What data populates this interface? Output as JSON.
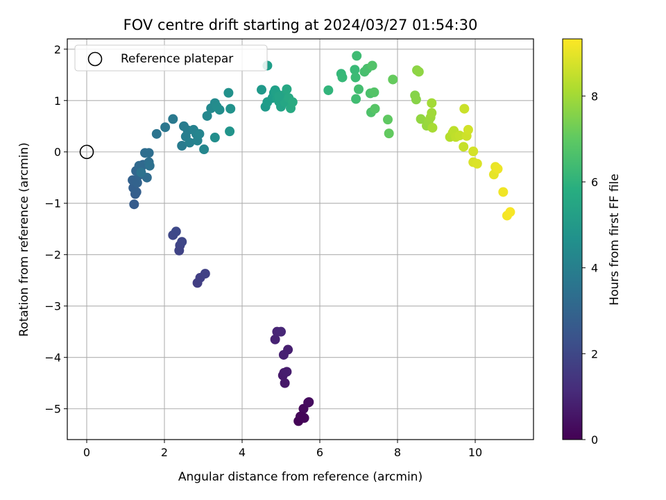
{
  "chart_data": {
    "type": "scatter",
    "title": "FOV centre drift starting at 2024/03/27 01:54:30",
    "xlabel": "Angular distance from reference (arcmin)",
    "ylabel": "Rotation from reference (arcmin)",
    "xlim": [
      -0.5,
      11.5
    ],
    "ylim": [
      -5.6,
      2.2
    ],
    "xticks": [
      0,
      2,
      4,
      6,
      8,
      10
    ],
    "yticks": [
      -5,
      -4,
      -3,
      -2,
      -1,
      0,
      1,
      2
    ],
    "grid": true,
    "legend": {
      "placement": "top-left",
      "entries": [
        "Reference platepar"
      ]
    },
    "reference_point": {
      "x": 0,
      "y": 0
    },
    "colorbar": {
      "label": "Hours from first FF file",
      "colormap": "viridis",
      "range": [
        0,
        9.33
      ],
      "ticks": [
        0,
        2,
        4,
        6,
        8
      ]
    },
    "points": [
      {
        "x": 5.45,
        "y": -5.24,
        "t": 0.05
      },
      {
        "x": 5.5,
        "y": -5.15,
        "t": 0.1
      },
      {
        "x": 5.6,
        "y": -5.18,
        "t": 0.15
      },
      {
        "x": 5.58,
        "y": -5.0,
        "t": 0.2
      },
      {
        "x": 5.7,
        "y": -4.88,
        "t": 0.25
      },
      {
        "x": 5.72,
        "y": -4.87,
        "t": 0.3
      },
      {
        "x": 5.52,
        "y": -5.15,
        "t": 0.12
      },
      {
        "x": 5.1,
        "y": -4.5,
        "t": 0.6
      },
      {
        "x": 5.05,
        "y": -4.35,
        "t": 0.65
      },
      {
        "x": 5.08,
        "y": -4.3,
        "t": 0.7
      },
      {
        "x": 5.15,
        "y": -4.28,
        "t": 0.75
      },
      {
        "x": 5.18,
        "y": -3.85,
        "t": 0.8
      },
      {
        "x": 5.07,
        "y": -3.95,
        "t": 0.85
      },
      {
        "x": 4.85,
        "y": -3.65,
        "t": 0.9
      },
      {
        "x": 4.9,
        "y": -3.5,
        "t": 0.95
      },
      {
        "x": 5.0,
        "y": -3.5,
        "t": 1.0
      },
      {
        "x": 2.85,
        "y": -2.55,
        "t": 1.7
      },
      {
        "x": 2.92,
        "y": -2.45,
        "t": 1.75
      },
      {
        "x": 3.05,
        "y": -2.37,
        "t": 1.8
      },
      {
        "x": 2.38,
        "y": -1.92,
        "t": 1.85
      },
      {
        "x": 2.4,
        "y": -1.82,
        "t": 1.9
      },
      {
        "x": 2.45,
        "y": -1.75,
        "t": 1.95
      },
      {
        "x": 2.22,
        "y": -1.62,
        "t": 2.0
      },
      {
        "x": 2.3,
        "y": -1.55,
        "t": 2.05
      },
      {
        "x": 1.22,
        "y": -1.02,
        "t": 2.7
      },
      {
        "x": 1.25,
        "y": -0.82,
        "t": 2.75
      },
      {
        "x": 1.28,
        "y": -0.78,
        "t": 2.8
      },
      {
        "x": 1.2,
        "y": -0.7,
        "t": 2.85
      },
      {
        "x": 1.18,
        "y": -0.55,
        "t": 2.9
      },
      {
        "x": 1.3,
        "y": -0.6,
        "t": 2.95
      },
      {
        "x": 1.35,
        "y": -0.45,
        "t": 3.0
      },
      {
        "x": 1.27,
        "y": -0.37,
        "t": 3.05
      },
      {
        "x": 1.4,
        "y": -0.3,
        "t": 3.1
      },
      {
        "x": 1.45,
        "y": -0.25,
        "t": 3.15
      },
      {
        "x": 1.35,
        "y": -0.27,
        "t": 3.2
      },
      {
        "x": 1.55,
        "y": -0.5,
        "t": 3.25
      },
      {
        "x": 1.5,
        "y": -0.02,
        "t": 3.3
      },
      {
        "x": 1.6,
        "y": -0.02,
        "t": 3.35
      },
      {
        "x": 1.6,
        "y": -0.2,
        "t": 3.4
      },
      {
        "x": 1.62,
        "y": -0.27,
        "t": 3.45
      },
      {
        "x": 1.4,
        "y": -0.4,
        "t": 3.5
      },
      {
        "x": 1.8,
        "y": 0.35,
        "t": 3.6
      },
      {
        "x": 2.02,
        "y": 0.48,
        "t": 3.7
      },
      {
        "x": 2.22,
        "y": 0.64,
        "t": 3.8
      },
      {
        "x": 2.45,
        "y": 0.12,
        "t": 3.85
      },
      {
        "x": 2.5,
        "y": 0.5,
        "t": 3.9
      },
      {
        "x": 2.6,
        "y": 0.42,
        "t": 3.95
      },
      {
        "x": 2.55,
        "y": 0.3,
        "t": 4.0
      },
      {
        "x": 2.65,
        "y": 0.18,
        "t": 4.05
      },
      {
        "x": 2.75,
        "y": 0.43,
        "t": 4.1
      },
      {
        "x": 2.82,
        "y": 0.35,
        "t": 4.15
      },
      {
        "x": 2.85,
        "y": 0.22,
        "t": 4.2
      },
      {
        "x": 2.9,
        "y": 0.35,
        "t": 4.25
      },
      {
        "x": 3.02,
        "y": 0.05,
        "t": 4.3
      },
      {
        "x": 3.1,
        "y": 0.7,
        "t": 4.35
      },
      {
        "x": 3.2,
        "y": 0.85,
        "t": 4.4
      },
      {
        "x": 3.3,
        "y": 0.95,
        "t": 4.45
      },
      {
        "x": 3.35,
        "y": 0.88,
        "t": 4.5
      },
      {
        "x": 3.42,
        "y": 0.82,
        "t": 4.55
      },
      {
        "x": 3.3,
        "y": 0.28,
        "t": 4.6
      },
      {
        "x": 3.65,
        "y": 1.15,
        "t": 4.7
      },
      {
        "x": 3.7,
        "y": 0.84,
        "t": 4.75
      },
      {
        "x": 3.68,
        "y": 0.4,
        "t": 4.8
      },
      {
        "x": 4.5,
        "y": 1.21,
        "t": 5.0
      },
      {
        "x": 4.6,
        "y": 0.88,
        "t": 5.05
      },
      {
        "x": 4.65,
        "y": 0.97,
        "t": 5.1
      },
      {
        "x": 4.78,
        "y": 1.05,
        "t": 5.15
      },
      {
        "x": 4.82,
        "y": 1.15,
        "t": 5.2
      },
      {
        "x": 4.85,
        "y": 1.2,
        "t": 5.25
      },
      {
        "x": 4.9,
        "y": 1.05,
        "t": 5.3
      },
      {
        "x": 4.95,
        "y": 0.98,
        "t": 5.35
      },
      {
        "x": 5.0,
        "y": 0.88,
        "t": 5.4
      },
      {
        "x": 5.05,
        "y": 1.1,
        "t": 5.45
      },
      {
        "x": 5.1,
        "y": 0.97,
        "t": 5.5
      },
      {
        "x": 5.15,
        "y": 1.22,
        "t": 5.55
      },
      {
        "x": 5.2,
        "y": 1.05,
        "t": 5.6
      },
      {
        "x": 5.25,
        "y": 0.85,
        "t": 5.65
      },
      {
        "x": 5.3,
        "y": 0.97,
        "t": 5.7
      },
      {
        "x": 4.65,
        "y": 1.68,
        "t": 5.2
      },
      {
        "x": 4.88,
        "y": 1.15,
        "t": 5.3
      },
      {
        "x": 4.95,
        "y": 1.08,
        "t": 5.4
      },
      {
        "x": 6.22,
        "y": 1.2,
        "t": 6.1
      },
      {
        "x": 6.55,
        "y": 1.52,
        "t": 6.2
      },
      {
        "x": 6.58,
        "y": 1.45,
        "t": 6.25
      },
      {
        "x": 6.9,
        "y": 1.6,
        "t": 6.3
      },
      {
        "x": 6.92,
        "y": 1.45,
        "t": 6.35
      },
      {
        "x": 6.95,
        "y": 1.87,
        "t": 6.4
      },
      {
        "x": 6.93,
        "y": 1.03,
        "t": 6.45
      },
      {
        "x": 7.0,
        "y": 1.22,
        "t": 6.5
      },
      {
        "x": 7.15,
        "y": 1.56,
        "t": 6.55
      },
      {
        "x": 7.22,
        "y": 1.62,
        "t": 6.6
      },
      {
        "x": 7.3,
        "y": 1.14,
        "t": 6.65
      },
      {
        "x": 7.32,
        "y": 0.77,
        "t": 6.7
      },
      {
        "x": 7.35,
        "y": 1.68,
        "t": 6.75
      },
      {
        "x": 7.4,
        "y": 1.16,
        "t": 6.8
      },
      {
        "x": 7.42,
        "y": 0.84,
        "t": 6.85
      },
      {
        "x": 7.75,
        "y": 0.63,
        "t": 7.0
      },
      {
        "x": 7.78,
        "y": 0.36,
        "t": 7.05
      },
      {
        "x": 7.88,
        "y": 1.41,
        "t": 7.1
      },
      {
        "x": 8.45,
        "y": 1.1,
        "t": 7.6
      },
      {
        "x": 8.48,
        "y": 1.02,
        "t": 7.65
      },
      {
        "x": 8.5,
        "y": 1.59,
        "t": 7.7
      },
      {
        "x": 8.55,
        "y": 1.56,
        "t": 7.75
      },
      {
        "x": 8.6,
        "y": 0.64,
        "t": 7.8
      },
      {
        "x": 8.75,
        "y": 0.51,
        "t": 7.85
      },
      {
        "x": 8.8,
        "y": 0.6,
        "t": 7.9
      },
      {
        "x": 8.85,
        "y": 0.67,
        "t": 7.95
      },
      {
        "x": 8.88,
        "y": 0.76,
        "t": 8.0
      },
      {
        "x": 8.88,
        "y": 0.95,
        "t": 8.05
      },
      {
        "x": 8.9,
        "y": 0.47,
        "t": 8.1
      },
      {
        "x": 9.35,
        "y": 0.29,
        "t": 8.3
      },
      {
        "x": 9.42,
        "y": 0.37,
        "t": 8.35
      },
      {
        "x": 9.45,
        "y": 0.41,
        "t": 8.4
      },
      {
        "x": 9.5,
        "y": 0.29,
        "t": 8.45
      },
      {
        "x": 9.6,
        "y": 0.32,
        "t": 8.5
      },
      {
        "x": 9.7,
        "y": 0.1,
        "t": 8.55
      },
      {
        "x": 9.72,
        "y": 0.84,
        "t": 8.6
      },
      {
        "x": 9.78,
        "y": 0.31,
        "t": 8.65
      },
      {
        "x": 9.82,
        "y": 0.43,
        "t": 8.7
      },
      {
        "x": 9.95,
        "y": 0.01,
        "t": 8.75
      },
      {
        "x": 9.95,
        "y": -0.2,
        "t": 8.8
      },
      {
        "x": 10.05,
        "y": -0.23,
        "t": 8.85
      },
      {
        "x": 10.48,
        "y": -0.44,
        "t": 9.0
      },
      {
        "x": 10.52,
        "y": -0.29,
        "t": 9.05
      },
      {
        "x": 10.58,
        "y": -0.33,
        "t": 9.1
      },
      {
        "x": 10.72,
        "y": -0.78,
        "t": 9.15
      },
      {
        "x": 10.82,
        "y": -1.24,
        "t": 9.2
      },
      {
        "x": 10.9,
        "y": -1.17,
        "t": 9.25
      }
    ]
  }
}
